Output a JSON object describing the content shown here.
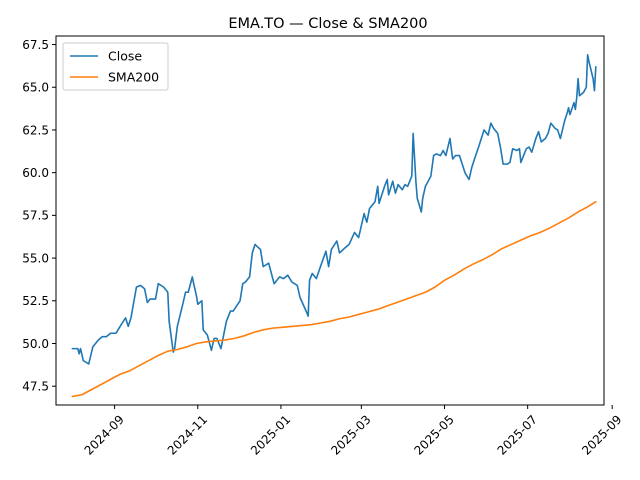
{
  "chart_data": {
    "type": "line",
    "title": "EMA.TO — Close & SMA200",
    "xlabel": "",
    "ylabel": "",
    "x_axis": {
      "type": "date",
      "range": [
        "2024-07-20",
        "2025-08-26"
      ],
      "ticks": [
        {
          "date": "2024-09-01",
          "label": "2024-09"
        },
        {
          "date": "2024-11-01",
          "label": "2024-11"
        },
        {
          "date": "2025-01-01",
          "label": "2025-01"
        },
        {
          "date": "2025-03-01",
          "label": "2025-03"
        },
        {
          "date": "2025-05-01",
          "label": "2025-05"
        },
        {
          "date": "2025-07-01",
          "label": "2025-07"
        },
        {
          "date": "2025-09-01",
          "label": "2025-09"
        }
      ]
    },
    "y_axis": {
      "range": [
        46.4,
        68.0
      ],
      "ticks": [
        {
          "value": 47.5,
          "label": "47.5"
        },
        {
          "value": 50.0,
          "label": "50.0"
        },
        {
          "value": 52.5,
          "label": "52.5"
        },
        {
          "value": 55.0,
          "label": "55.0"
        },
        {
          "value": 57.5,
          "label": "57.5"
        },
        {
          "value": 60.0,
          "label": "60.0"
        },
        {
          "value": 62.5,
          "label": "62.5"
        },
        {
          "value": 65.0,
          "label": "65.0"
        },
        {
          "value": 67.5,
          "label": "67.5"
        }
      ]
    },
    "grid": false,
    "legend": {
      "position": "top-left"
    },
    "series": [
      {
        "name": "Close",
        "color": "#1f77b4",
        "points": [
          [
            "2024-08-01",
            49.7
          ],
          [
            "2024-08-05",
            49.7
          ],
          [
            "2024-08-06",
            49.4
          ],
          [
            "2024-08-07",
            49.7
          ],
          [
            "2024-08-09",
            49.0
          ],
          [
            "2024-08-13",
            48.8
          ],
          [
            "2024-08-16",
            49.8
          ],
          [
            "2024-08-20",
            50.2
          ],
          [
            "2024-08-23",
            50.4
          ],
          [
            "2024-08-26",
            50.4
          ],
          [
            "2024-08-29",
            50.6
          ],
          [
            "2024-09-02",
            50.6
          ],
          [
            "2024-09-05",
            51.0
          ],
          [
            "2024-09-09",
            51.5
          ],
          [
            "2024-09-11",
            51.0
          ],
          [
            "2024-09-13",
            51.5
          ],
          [
            "2024-09-17",
            53.3
          ],
          [
            "2024-09-20",
            53.4
          ],
          [
            "2024-09-23",
            53.2
          ],
          [
            "2024-09-25",
            52.4
          ],
          [
            "2024-09-27",
            52.6
          ],
          [
            "2024-10-01",
            52.6
          ],
          [
            "2024-10-03",
            53.5
          ],
          [
            "2024-10-07",
            53.3
          ],
          [
            "2024-10-10",
            53.0
          ],
          [
            "2024-10-11",
            51.3
          ],
          [
            "2024-10-14",
            49.5
          ],
          [
            "2024-10-15",
            49.7
          ],
          [
            "2024-10-17",
            51.0
          ],
          [
            "2024-10-21",
            52.3
          ],
          [
            "2024-10-23",
            53.0
          ],
          [
            "2024-10-25",
            53.0
          ],
          [
            "2024-10-28",
            53.9
          ],
          [
            "2024-10-29",
            53.5
          ],
          [
            "2024-10-31",
            52.8
          ],
          [
            "2024-11-01",
            52.3
          ],
          [
            "2024-11-04",
            52.5
          ],
          [
            "2024-11-05",
            50.8
          ],
          [
            "2024-11-08",
            50.5
          ],
          [
            "2024-11-11",
            49.6
          ],
          [
            "2024-11-13",
            50.3
          ],
          [
            "2024-11-15",
            50.3
          ],
          [
            "2024-11-18",
            49.7
          ],
          [
            "2024-11-20",
            50.5
          ],
          [
            "2024-11-22",
            51.3
          ],
          [
            "2024-11-25",
            51.9
          ],
          [
            "2024-11-27",
            51.9
          ],
          [
            "2024-12-02",
            52.5
          ],
          [
            "2024-12-04",
            53.5
          ],
          [
            "2024-12-06",
            53.6
          ],
          [
            "2024-12-09",
            53.9
          ],
          [
            "2024-12-11",
            55.3
          ],
          [
            "2024-12-13",
            55.8
          ],
          [
            "2024-12-17",
            55.5
          ],
          [
            "2024-12-19",
            54.5
          ],
          [
            "2024-12-23",
            54.7
          ],
          [
            "2024-12-27",
            53.5
          ],
          [
            "2024-12-31",
            53.9
          ],
          [
            "2025-01-03",
            53.8
          ],
          [
            "2025-01-06",
            54.0
          ],
          [
            "2025-01-09",
            53.6
          ],
          [
            "2025-01-13",
            53.4
          ],
          [
            "2025-01-15",
            52.7
          ],
          [
            "2025-01-20",
            51.8
          ],
          [
            "2025-01-21",
            51.6
          ],
          [
            "2025-01-22",
            53.7
          ],
          [
            "2025-01-24",
            54.1
          ],
          [
            "2025-01-27",
            53.8
          ],
          [
            "2025-01-30",
            54.5
          ],
          [
            "2025-02-03",
            55.4
          ],
          [
            "2025-02-05",
            54.5
          ],
          [
            "2025-02-07",
            55.5
          ],
          [
            "2025-02-11",
            56.0
          ],
          [
            "2025-02-13",
            55.3
          ],
          [
            "2025-02-17",
            55.6
          ],
          [
            "2025-02-20",
            55.8
          ],
          [
            "2025-02-24",
            56.5
          ],
          [
            "2025-02-27",
            56.2
          ],
          [
            "2025-03-03",
            57.6
          ],
          [
            "2025-03-05",
            57.1
          ],
          [
            "2025-03-07",
            57.9
          ],
          [
            "2025-03-11",
            58.3
          ],
          [
            "2025-03-13",
            59.2
          ],
          [
            "2025-03-14",
            58.2
          ],
          [
            "2025-03-18",
            59.2
          ],
          [
            "2025-03-20",
            59.6
          ],
          [
            "2025-03-21",
            58.7
          ],
          [
            "2025-03-24",
            59.5
          ],
          [
            "2025-03-26",
            58.8
          ],
          [
            "2025-03-28",
            59.3
          ],
          [
            "2025-03-31",
            59.0
          ],
          [
            "2025-04-02",
            59.3
          ],
          [
            "2025-04-04",
            59.2
          ],
          [
            "2025-04-07",
            59.8
          ],
          [
            "2025-04-08",
            62.3
          ],
          [
            "2025-04-10",
            59.5
          ],
          [
            "2025-04-11",
            58.5
          ],
          [
            "2025-04-14",
            57.7
          ],
          [
            "2025-04-15",
            58.5
          ],
          [
            "2025-04-17",
            59.2
          ],
          [
            "2025-04-21",
            59.8
          ],
          [
            "2025-04-23",
            61.0
          ],
          [
            "2025-04-25",
            61.1
          ],
          [
            "2025-04-28",
            61.0
          ],
          [
            "2025-04-30",
            61.3
          ],
          [
            "2025-05-02",
            61.0
          ],
          [
            "2025-05-05",
            62.0
          ],
          [
            "2025-05-07",
            60.8
          ],
          [
            "2025-05-09",
            61.0
          ],
          [
            "2025-05-12",
            61.0
          ],
          [
            "2025-05-14",
            60.5
          ],
          [
            "2025-05-16",
            60.0
          ],
          [
            "2025-05-19",
            59.6
          ],
          [
            "2025-05-21",
            60.3
          ],
          [
            "2025-05-23",
            60.8
          ],
          [
            "2025-05-26",
            61.5
          ],
          [
            "2025-05-28",
            62.0
          ],
          [
            "2025-05-30",
            62.5
          ],
          [
            "2025-06-02",
            62.2
          ],
          [
            "2025-06-04",
            62.9
          ],
          [
            "2025-06-06",
            62.6
          ],
          [
            "2025-06-09",
            62.3
          ],
          [
            "2025-06-11",
            61.5
          ],
          [
            "2025-06-13",
            60.5
          ],
          [
            "2025-06-16",
            60.5
          ],
          [
            "2025-06-18",
            60.6
          ],
          [
            "2025-06-20",
            61.4
          ],
          [
            "2025-06-23",
            61.3
          ],
          [
            "2025-06-25",
            61.4
          ],
          [
            "2025-06-26",
            60.6
          ],
          [
            "2025-06-30",
            61.4
          ],
          [
            "2025-07-02",
            61.5
          ],
          [
            "2025-07-04",
            61.2
          ],
          [
            "2025-07-07",
            62.0
          ],
          [
            "2025-07-09",
            62.4
          ],
          [
            "2025-07-11",
            61.8
          ],
          [
            "2025-07-14",
            62.0
          ],
          [
            "2025-07-16",
            62.3
          ],
          [
            "2025-07-18",
            62.9
          ],
          [
            "2025-07-21",
            62.6
          ],
          [
            "2025-07-23",
            62.5
          ],
          [
            "2025-07-25",
            62.0
          ],
          [
            "2025-07-28",
            63.0
          ],
          [
            "2025-07-30",
            63.5
          ],
          [
            "2025-07-31",
            63.8
          ],
          [
            "2025-08-01",
            63.4
          ],
          [
            "2025-08-04",
            64.1
          ],
          [
            "2025-08-05",
            63.7
          ],
          [
            "2025-08-06",
            64.4
          ],
          [
            "2025-08-07",
            65.5
          ],
          [
            "2025-08-08",
            64.5
          ],
          [
            "2025-08-11",
            64.7
          ],
          [
            "2025-08-13",
            65.0
          ],
          [
            "2025-08-14",
            66.9
          ],
          [
            "2025-08-15",
            66.5
          ],
          [
            "2025-08-18",
            65.5
          ],
          [
            "2025-08-19",
            64.8
          ],
          [
            "2025-08-20",
            66.2
          ]
        ]
      },
      {
        "name": "SMA200",
        "color": "#ff7f0e",
        "points": [
          [
            "2024-08-01",
            46.9
          ],
          [
            "2024-08-08",
            47.0
          ],
          [
            "2024-08-15",
            47.3
          ],
          [
            "2024-08-22",
            47.6
          ],
          [
            "2024-08-29",
            47.9
          ],
          [
            "2024-09-05",
            48.2
          ],
          [
            "2024-09-12",
            48.4
          ],
          [
            "2024-09-19",
            48.7
          ],
          [
            "2024-09-26",
            49.0
          ],
          [
            "2024-10-03",
            49.3
          ],
          [
            "2024-10-10",
            49.55
          ],
          [
            "2024-10-17",
            49.65
          ],
          [
            "2024-10-24",
            49.8
          ],
          [
            "2024-10-31",
            50.0
          ],
          [
            "2024-11-07",
            50.1
          ],
          [
            "2024-11-14",
            50.15
          ],
          [
            "2024-11-21",
            50.2
          ],
          [
            "2024-11-28",
            50.3
          ],
          [
            "2024-12-05",
            50.45
          ],
          [
            "2024-12-12",
            50.65
          ],
          [
            "2024-12-19",
            50.8
          ],
          [
            "2024-12-26",
            50.9
          ],
          [
            "2025-01-02",
            50.95
          ],
          [
            "2025-01-09",
            51.0
          ],
          [
            "2025-01-16",
            51.05
          ],
          [
            "2025-01-23",
            51.1
          ],
          [
            "2025-01-30",
            51.2
          ],
          [
            "2025-02-06",
            51.3
          ],
          [
            "2025-02-13",
            51.45
          ],
          [
            "2025-02-20",
            51.55
          ],
          [
            "2025-02-27",
            51.7
          ],
          [
            "2025-03-06",
            51.85
          ],
          [
            "2025-03-13",
            52.0
          ],
          [
            "2025-03-20",
            52.2
          ],
          [
            "2025-03-27",
            52.4
          ],
          [
            "2025-04-03",
            52.6
          ],
          [
            "2025-04-10",
            52.8
          ],
          [
            "2025-04-17",
            53.0
          ],
          [
            "2025-04-24",
            53.3
          ],
          [
            "2025-05-01",
            53.7
          ],
          [
            "2025-05-08",
            54.0
          ],
          [
            "2025-05-15",
            54.35
          ],
          [
            "2025-05-22",
            54.65
          ],
          [
            "2025-05-29",
            54.9
          ],
          [
            "2025-06-05",
            55.2
          ],
          [
            "2025-06-12",
            55.55
          ],
          [
            "2025-06-19",
            55.8
          ],
          [
            "2025-06-26",
            56.05
          ],
          [
            "2025-07-03",
            56.3
          ],
          [
            "2025-07-10",
            56.5
          ],
          [
            "2025-07-17",
            56.75
          ],
          [
            "2025-07-24",
            57.05
          ],
          [
            "2025-07-31",
            57.35
          ],
          [
            "2025-08-07",
            57.7
          ],
          [
            "2025-08-14",
            58.0
          ],
          [
            "2025-08-20",
            58.3
          ]
        ]
      }
    ]
  }
}
